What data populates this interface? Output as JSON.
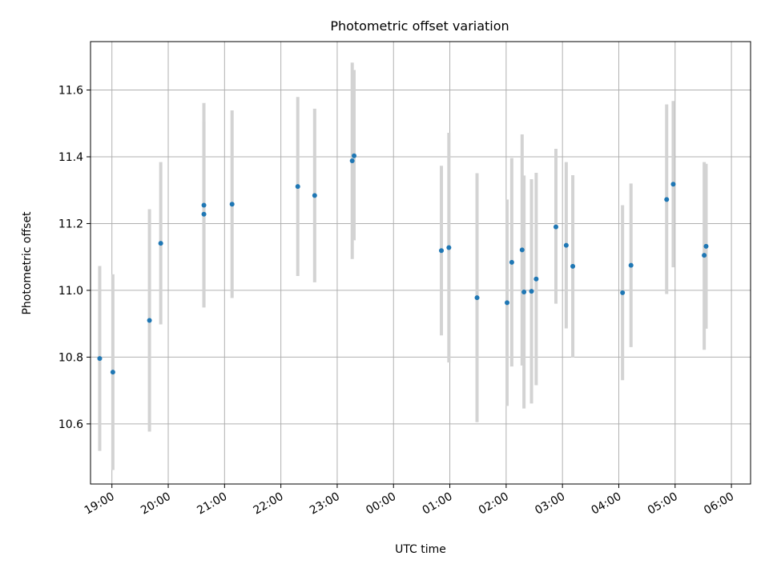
{
  "chart_data": {
    "type": "scatter",
    "title": "Photometric offset variation",
    "xlabel": "UTC time",
    "ylabel": "Photometric offset",
    "x_axis_type": "time-of-day",
    "x_start_hour": 18,
    "xlim_hours": [
      18.62,
      30.34
    ],
    "ylim": [
      10.42,
      11.745
    ],
    "x_ticks": [
      {
        "hour": 19,
        "label": "19:00"
      },
      {
        "hour": 20,
        "label": "20:00"
      },
      {
        "hour": 21,
        "label": "21:00"
      },
      {
        "hour": 22,
        "label": "22:00"
      },
      {
        "hour": 23,
        "label": "23:00"
      },
      {
        "hour": 24,
        "label": "00:00"
      },
      {
        "hour": 25,
        "label": "01:00"
      },
      {
        "hour": 26,
        "label": "02:00"
      },
      {
        "hour": 27,
        "label": "03:00"
      },
      {
        "hour": 28,
        "label": "04:00"
      },
      {
        "hour": 29,
        "label": "05:00"
      },
      {
        "hour": 30,
        "label": "06:00"
      }
    ],
    "y_ticks": [
      {
        "value": 10.6,
        "label": "10.6"
      },
      {
        "value": 10.8,
        "label": "10.8"
      },
      {
        "value": 11.0,
        "label": "11.0"
      },
      {
        "value": 11.2,
        "label": "11.2"
      },
      {
        "value": 11.4,
        "label": "11.4"
      },
      {
        "value": 11.6,
        "label": "11.6"
      }
    ],
    "grid": true,
    "legend": false,
    "colors": {
      "marker": "#1f77b4",
      "errorbar": "#d3d3d3",
      "grid": "#b0b0b0",
      "axes": "#000000"
    },
    "points": [
      {
        "t": "18:47",
        "y": 10.796,
        "low": 10.519,
        "high": 11.073
      },
      {
        "t": "19:01",
        "y": 10.755,
        "low": 10.462,
        "high": 11.048
      },
      {
        "t": "19:40",
        "y": 10.91,
        "low": 10.577,
        "high": 11.243
      },
      {
        "t": "19:52",
        "y": 11.141,
        "low": 10.898,
        "high": 11.384
      },
      {
        "t": "20:38",
        "y": 11.255,
        "low": 10.949,
        "high": 11.561
      },
      {
        "t": "20:38",
        "y": 11.228,
        "low": 10.949,
        "high": 11.507
      },
      {
        "t": "21:08",
        "y": 11.258,
        "low": 10.977,
        "high": 11.539
      },
      {
        "t": "22:18",
        "y": 11.311,
        "low": 11.043,
        "high": 11.579
      },
      {
        "t": "22:36",
        "y": 11.284,
        "low": 11.024,
        "high": 11.544
      },
      {
        "t": "23:16",
        "y": 11.388,
        "low": 11.094,
        "high": 11.682
      },
      {
        "t": "23:18",
        "y": 11.403,
        "low": 11.15,
        "high": 11.66
      },
      {
        "t": "00:51",
        "y": 11.119,
        "low": 10.865,
        "high": 11.373
      },
      {
        "t": "00:59",
        "y": 11.128,
        "low": 10.784,
        "high": 11.472
      },
      {
        "t": "01:29",
        "y": 10.978,
        "low": 10.605,
        "high": 11.351
      },
      {
        "t": "02:01",
        "y": 10.963,
        "low": 10.654,
        "high": 11.272
      },
      {
        "t": "02:06",
        "y": 11.084,
        "low": 10.772,
        "high": 11.396
      },
      {
        "t": "02:17",
        "y": 11.121,
        "low": 10.775,
        "high": 11.467
      },
      {
        "t": "02:19",
        "y": 10.995,
        "low": 10.646,
        "high": 11.344
      },
      {
        "t": "02:27",
        "y": 10.997,
        "low": 10.661,
        "high": 11.333
      },
      {
        "t": "02:32",
        "y": 11.034,
        "low": 10.716,
        "high": 11.352
      },
      {
        "t": "02:53",
        "y": 11.19,
        "low": 10.96,
        "high": 11.424
      },
      {
        "t": "03:04",
        "y": 11.135,
        "low": 10.886,
        "high": 11.384
      },
      {
        "t": "03:11",
        "y": 11.072,
        "low": 10.799,
        "high": 11.345
      },
      {
        "t": "04:04",
        "y": 10.993,
        "low": 10.731,
        "high": 11.255
      },
      {
        "t": "04:13",
        "y": 11.075,
        "low": 10.83,
        "high": 11.32
      },
      {
        "t": "04:51",
        "y": 11.272,
        "low": 10.989,
        "high": 11.557
      },
      {
        "t": "04:58",
        "y": 11.318,
        "low": 11.069,
        "high": 11.567
      },
      {
        "t": "05:31",
        "y": 11.105,
        "low": 10.822,
        "high": 11.384
      },
      {
        "t": "05:33",
        "y": 11.132,
        "low": 10.885,
        "high": 11.379
      }
    ]
  }
}
